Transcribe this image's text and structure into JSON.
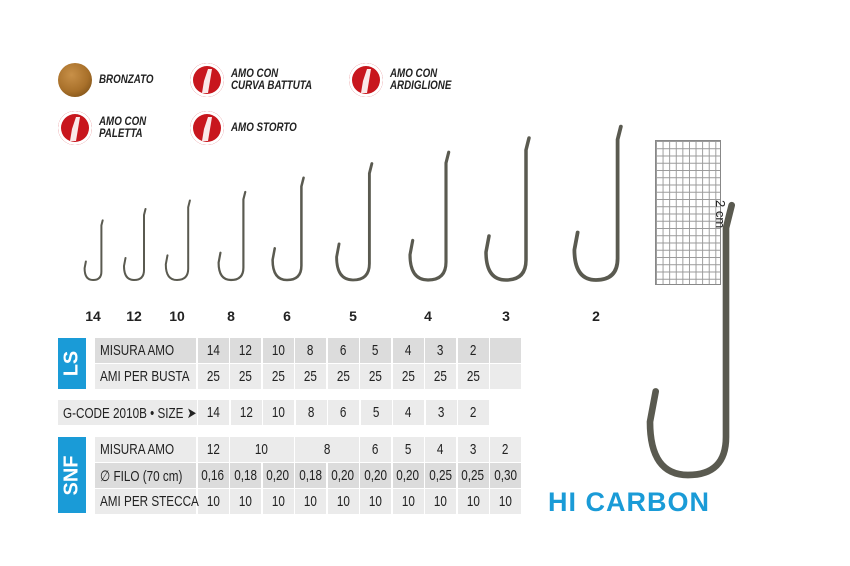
{
  "legend": [
    {
      "icon": "bronze-finish-icon",
      "label": "BRONZATO"
    },
    {
      "icon": "forged-bend-icon",
      "label": "AMO CON\nCURVA BATTUTA"
    },
    {
      "icon": "barb-hook-icon",
      "label": "AMO CON\nARDIGLIONE"
    },
    {
      "icon": "spade-end-icon",
      "label": "AMO CON\nPALETTA"
    },
    {
      "icon": "offset-hook-icon",
      "label": "AMO STORTO"
    }
  ],
  "colors": {
    "accent": "#1a9bd7",
    "icon_red": "#c8161d",
    "bronze": "#a8702a"
  },
  "hook_sizes": [
    "14",
    "12",
    "10",
    "8",
    "6",
    "5",
    "4",
    "3",
    "2"
  ],
  "scale_label": "2 cm",
  "ls": {
    "tab": "LS",
    "rows": [
      {
        "label": "MISURA AMO",
        "values": [
          "14",
          "12",
          "10",
          "8",
          "6",
          "5",
          "4",
          "3",
          "2",
          ""
        ]
      },
      {
        "label": "AMI PER BUSTA",
        "values": [
          "25",
          "25",
          "25",
          "25",
          "25",
          "25",
          "25",
          "25",
          "25",
          ""
        ]
      }
    ]
  },
  "gcode": {
    "label": "G-CODE 2010B • SIZE ➤",
    "values": [
      "14",
      "12",
      "10",
      "8",
      "6",
      "5",
      "4",
      "3",
      "2"
    ]
  },
  "snf": {
    "tab": "SNF",
    "rows": [
      {
        "label": "MISURA AMO",
        "values": [
          "12",
          "10",
          "",
          "8",
          "",
          "6",
          "5",
          "4",
          "3",
          "2"
        ]
      },
      {
        "label": "∅ FILO (70 cm)",
        "values": [
          "0,16",
          "0,18",
          "0,20",
          "0,18",
          "0,20",
          "0,20",
          "0,20",
          "0,25",
          "0,25",
          "0,30"
        ]
      },
      {
        "label": "AMI PER STECCA",
        "values": [
          "10",
          "10",
          "10",
          "10",
          "10",
          "10",
          "10",
          "10",
          "10",
          "10"
        ]
      }
    ]
  },
  "brand_text": "HI CARBON"
}
